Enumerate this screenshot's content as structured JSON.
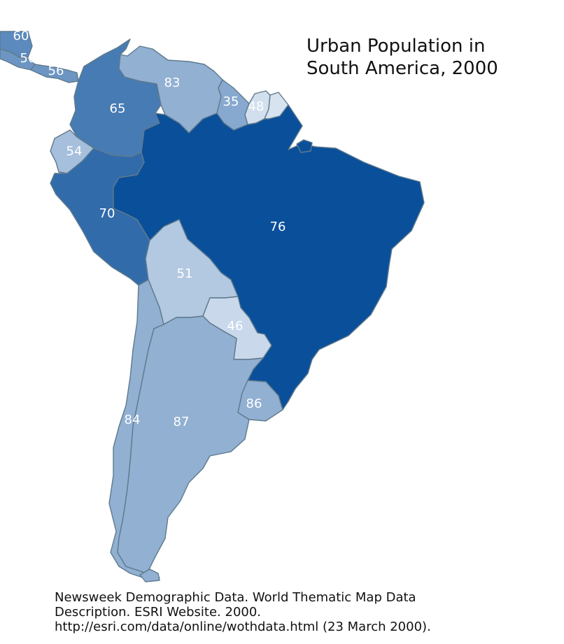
{
  "title": {
    "line1": "Urban Population in",
    "line2": "South America, 2000"
  },
  "source": {
    "line1": "Newsweek Demographic Data. World Thematic Map Data",
    "line2": "Description. ESRI Website. 2000.",
    "line3": "http://esri.com/data/online/wothdata.html (23 March 2000)."
  },
  "colors": {
    "ocean": "#ffffff",
    "border": "#5f7a8c",
    "label": "#ffffff",
    "scale_lightest": "#e3ebf5",
    "scale_darkest": "#0a4f9a"
  },
  "regions": [
    {
      "id": "central-america",
      "value": "60"
    },
    {
      "id": "costa-rica",
      "value": "50"
    },
    {
      "id": "panama",
      "value": "56"
    },
    {
      "id": "colombia",
      "value": "65"
    },
    {
      "id": "venezuela",
      "value": "83"
    },
    {
      "id": "guyana",
      "value": "35"
    },
    {
      "id": "suriname",
      "value": "48"
    },
    {
      "id": "french-guiana",
      "value": ""
    },
    {
      "id": "ecuador",
      "value": "54"
    },
    {
      "id": "peru",
      "value": "70"
    },
    {
      "id": "brazil",
      "value": "76"
    },
    {
      "id": "bolivia",
      "value": "51"
    },
    {
      "id": "paraguay",
      "value": "46"
    },
    {
      "id": "chile",
      "value": "84"
    },
    {
      "id": "argentina",
      "value": "87"
    },
    {
      "id": "uruguay",
      "value": "86"
    }
  ]
}
